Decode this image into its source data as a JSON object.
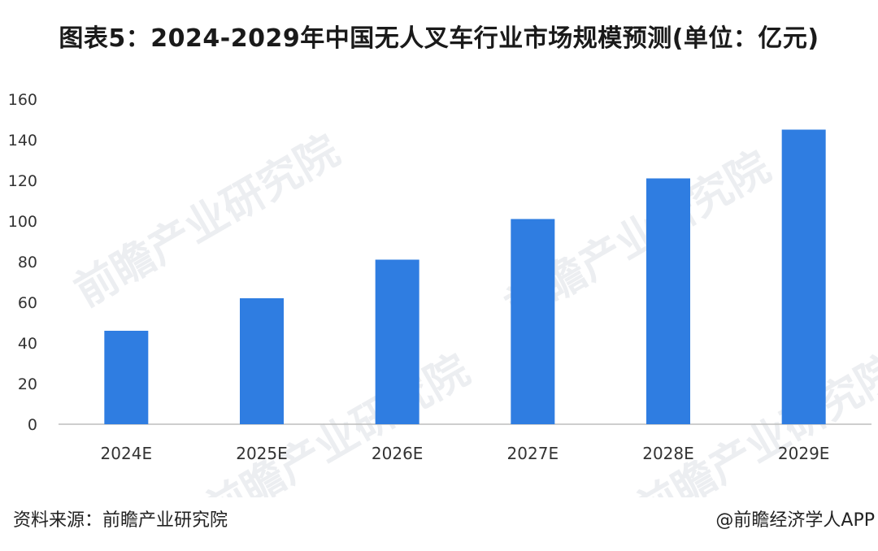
{
  "title": "图表5：2024-2029年中国无人叉车行业市场规模预测(单位：亿元)",
  "footer": {
    "source": "资料来源：前瞻产业研究院",
    "brand": "@前瞻经济学人APP"
  },
  "watermark": "前瞻产业研究院",
  "colors": {
    "bar": "#2f7de1",
    "axis": "#bdbdbd"
  },
  "chart_data": {
    "type": "bar",
    "categories": [
      "2024E",
      "2025E",
      "2026E",
      "2027E",
      "2028E",
      "2029E"
    ],
    "values": [
      46,
      62,
      81,
      101,
      121,
      145
    ],
    "title": "图表5：2024-2029年中国无人叉车行业市场规模预测(单位：亿元)",
    "xlabel": "",
    "ylabel": "",
    "ylim": [
      0,
      160
    ],
    "yticks": [
      0,
      20,
      40,
      60,
      80,
      100,
      120,
      140,
      160
    ],
    "grid": false,
    "legend": "none"
  }
}
